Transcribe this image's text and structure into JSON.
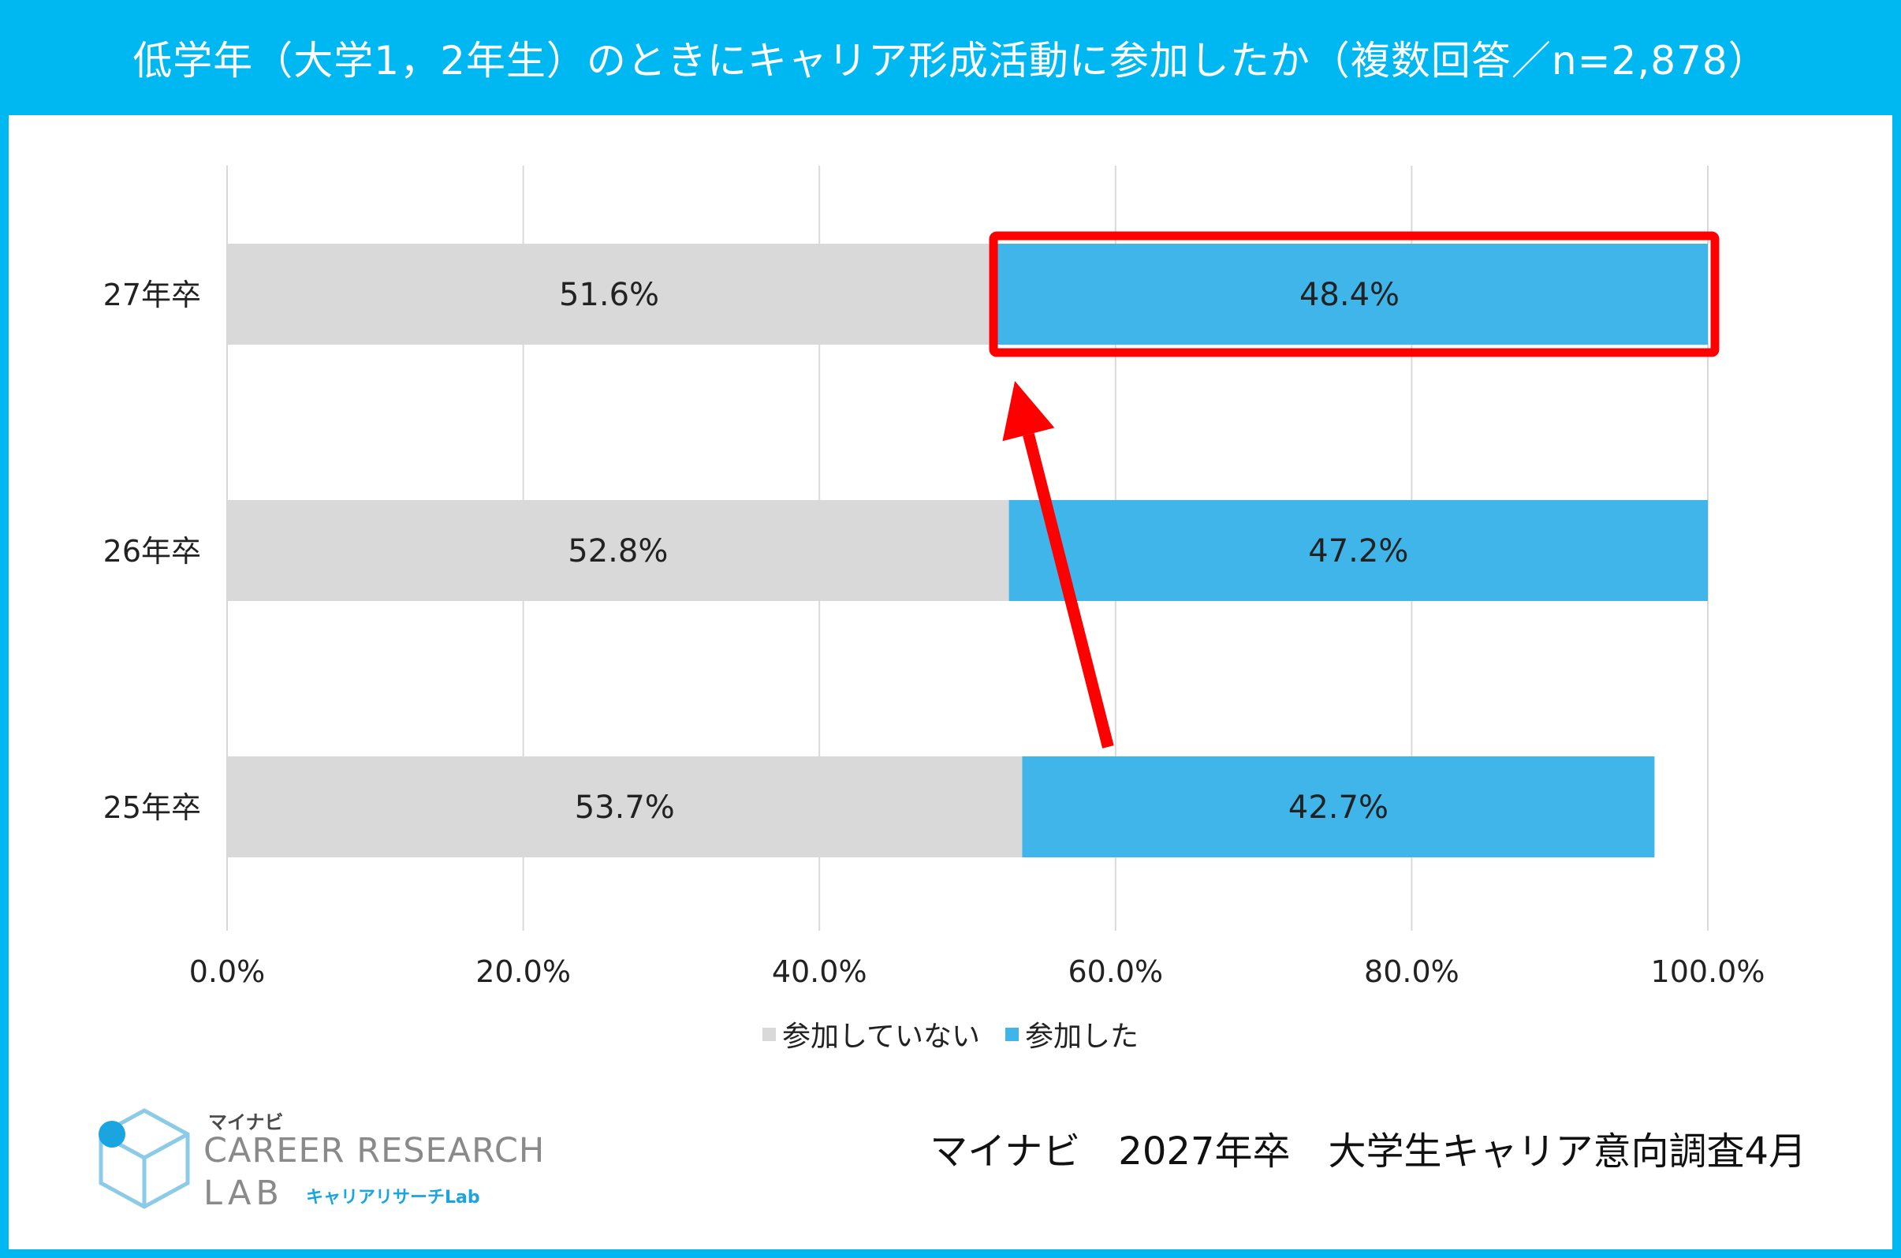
{
  "header": {
    "title": "低学年（大学1，2年生）のときにキャリア形成活動に参加したか（複数回答／n=2,878）"
  },
  "chart_data": {
    "type": "bar",
    "orientation": "horizontal",
    "stacked": true,
    "categories": [
      "27年卒",
      "26年卒",
      "25年卒"
    ],
    "series": [
      {
        "name": "参加していない",
        "values": [
          51.6,
          52.8,
          53.7
        ],
        "labels": [
          "51.6%",
          "52.8%",
          "53.7%"
        ],
        "color": "#d9d9d9"
      },
      {
        "name": "参加した",
        "values": [
          48.4,
          47.2,
          42.7
        ],
        "labels": [
          "48.4%",
          "47.2%",
          "42.7%"
        ],
        "color": "#3fb5e9"
      }
    ],
    "xlim": [
      0,
      100
    ],
    "x_ticks": [
      "0.0%",
      "20.0%",
      "40.0%",
      "60.0%",
      "80.0%",
      "100.0%"
    ],
    "grid": true,
    "legend_position": "bottom",
    "highlight": {
      "category": "27年卒",
      "series": "参加した",
      "color": "#ff0000"
    },
    "arrow": {
      "from_category": "25年卒",
      "to_category": "27年卒",
      "color": "#ff0000"
    }
  },
  "footer": {
    "logo_name": "マイナビ",
    "logo_title": "CAREER RESEARCH",
    "logo_lab": "LAB",
    "logo_sub": "キャリアリサーチLab",
    "source": "マイナビ　2027年卒　大学生キャリア意向調査4月"
  },
  "colors": {
    "brand": "#00b8f1",
    "accent": "#ff0000"
  }
}
